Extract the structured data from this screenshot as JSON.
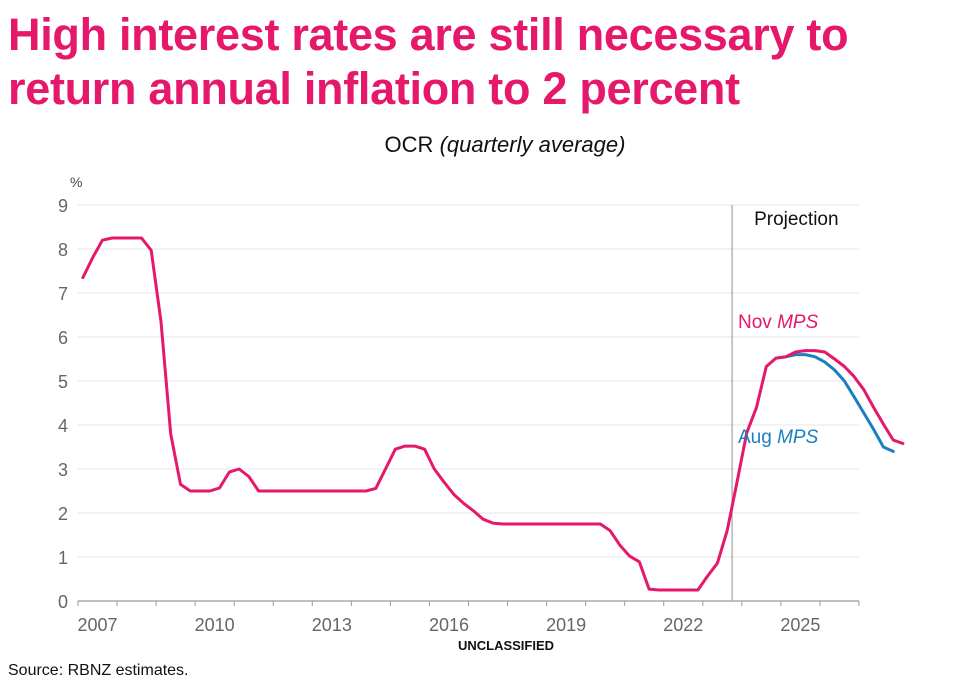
{
  "title": "High interest rates are still necessary to return annual inflation to 2 percent",
  "subtitle_main": "OCR",
  "subtitle_italic": "(quarterly average)",
  "classification": "UNCLASSIFIED",
  "source": "Source: RBNZ estimates.",
  "colors": {
    "nov": "#e5186b",
    "aug": "#1a7fc1",
    "grid": "#eeeeee",
    "axis": "#999999",
    "projection_line": "#aaaaaa"
  },
  "chart_data": {
    "type": "line",
    "title": "OCR (quarterly average)",
    "ylabel": "%",
    "xlabel": "",
    "ylim": [
      0,
      9
    ],
    "yticks": [
      0,
      1,
      2,
      3,
      4,
      5,
      6,
      7,
      8,
      9
    ],
    "xlim": [
      2007,
      2027
    ],
    "xtick_labels": [
      "2007",
      "2010",
      "2013",
      "2016",
      "2019",
      "2022",
      "2025"
    ],
    "grid": true,
    "projection": {
      "label": "Projection",
      "start": 2023.75
    },
    "annotations": [
      {
        "text": "Nov",
        "italic": "MPS",
        "series": "Nov MPS"
      },
      {
        "text": "Aug",
        "italic": "MPS",
        "series": "Aug MPS"
      }
    ],
    "x_start": 2007.125,
    "x_step": 0.25,
    "series": [
      {
        "name": "Nov MPS",
        "values": [
          7.35,
          7.8,
          8.2,
          8.25,
          8.25,
          8.25,
          8.25,
          7.97,
          6.35,
          3.8,
          2.65,
          2.5,
          2.5,
          2.5,
          2.57,
          2.93,
          3.0,
          2.83,
          2.5,
          2.5,
          2.5,
          2.5,
          2.5,
          2.5,
          2.5,
          2.5,
          2.5,
          2.5,
          2.5,
          2.5,
          2.56,
          3.0,
          3.45,
          3.52,
          3.52,
          3.45,
          3.0,
          2.7,
          2.42,
          2.22,
          2.05,
          1.86,
          1.77,
          1.75,
          1.75,
          1.75,
          1.75,
          1.75,
          1.75,
          1.75,
          1.75,
          1.75,
          1.75,
          1.75,
          1.6,
          1.27,
          1.02,
          0.89,
          0.27,
          0.25,
          0.25,
          0.25,
          0.25,
          0.25,
          0.57,
          0.86,
          1.6,
          2.7,
          3.82,
          4.4,
          5.33,
          5.52,
          5.55,
          5.66,
          5.69,
          5.69,
          5.66,
          5.5,
          5.33,
          5.1,
          4.8,
          4.4,
          4.02,
          3.66,
          3.58
        ]
      },
      {
        "name": "Aug MPS",
        "start_index": 71,
        "values": [
          5.52,
          5.55,
          5.6,
          5.6,
          5.55,
          5.43,
          5.25,
          5.0,
          4.64,
          4.27,
          3.9,
          3.5,
          3.4
        ]
      }
    ]
  }
}
